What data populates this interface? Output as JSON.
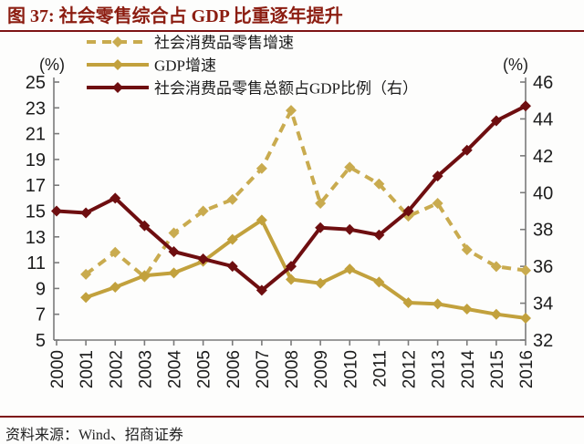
{
  "header": {
    "title": "图 37: 社会零售综合占 GDP 比重逐年提升"
  },
  "axes": {
    "left_unit": "(%)",
    "right_unit": "(%)",
    "left_ticks": [
      "25",
      "23",
      "21",
      "19",
      "17",
      "15",
      "13",
      "11",
      "9",
      "7",
      "5"
    ],
    "right_ticks": [
      "46",
      "44",
      "42",
      "40",
      "38",
      "36",
      "34",
      "32"
    ]
  },
  "chart_data": {
    "type": "line",
    "title": "社会零售综合占GDP比重逐年提升",
    "categories": [
      "2000",
      "2001",
      "2002",
      "2003",
      "2004",
      "2005",
      "2006",
      "2007",
      "2008",
      "2009",
      "2010",
      "2011",
      "2012",
      "2013",
      "2014",
      "2015",
      "2016"
    ],
    "left_ylim": [
      5,
      25
    ],
    "right_ylim": [
      32,
      46
    ],
    "grid": false,
    "legend_position": "top-left",
    "series": [
      {
        "name": "社会消费品零售增速",
        "axis": "left",
        "style": "dashed",
        "color": "#C9AB4F",
        "values": [
          null,
          10.1,
          11.8,
          9.9,
          13.3,
          15.0,
          15.9,
          18.3,
          22.8,
          15.6,
          18.4,
          17.1,
          14.6,
          15.6,
          12.0,
          10.7,
          10.4
        ]
      },
      {
        "name": "GDP增速",
        "axis": "left",
        "style": "solid",
        "color": "#C2A13D",
        "values": [
          null,
          8.3,
          9.1,
          10.0,
          10.2,
          11.1,
          12.8,
          14.3,
          9.7,
          9.4,
          10.5,
          9.5,
          7.9,
          7.8,
          7.4,
          7.0,
          6.7
        ]
      },
      {
        "name": "社会消费品零售总额占GDP比例（右）",
        "axis": "right",
        "style": "solid",
        "color": "#6E0E10",
        "values": [
          39.0,
          38.9,
          39.7,
          38.2,
          36.8,
          36.4,
          36.0,
          34.7,
          36.0,
          38.1,
          38.0,
          37.7,
          39.0,
          40.9,
          42.3,
          43.9,
          44.7
        ]
      }
    ]
  },
  "footer": {
    "source": "资料来源：Wind、招商证券"
  },
  "colors": {
    "accent_rule": "#7E1315",
    "title_red": "#8C1D11",
    "axis_gray": "#7b7b7b",
    "text_dark": "#1c1c1c"
  }
}
